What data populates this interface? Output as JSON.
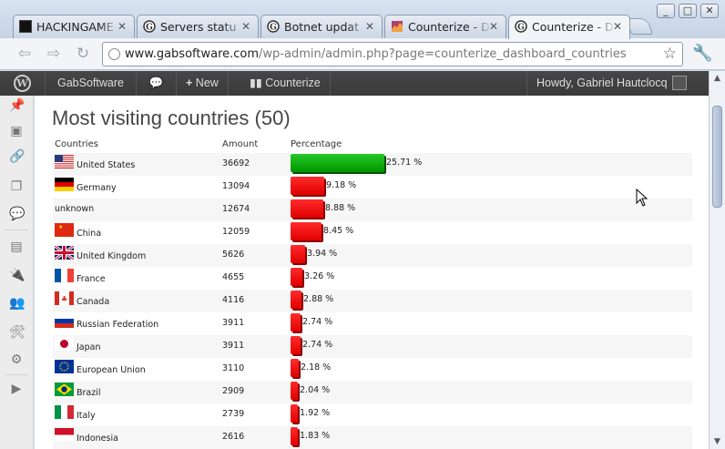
{
  "browser": {
    "tabs": [
      {
        "title": "HACKINGAME",
        "icon": "hackingame-favicon-icon",
        "active": false
      },
      {
        "title": "Servers statu",
        "icon": "gab-favicon-icon",
        "active": false
      },
      {
        "title": "Botnet updat",
        "icon": "gab-favicon-icon",
        "active": false
      },
      {
        "title": "Counterize - D",
        "icon": "counterize-favicon-icon",
        "active": false
      },
      {
        "title": "Counterize - D",
        "icon": "gab-favicon-icon",
        "active": true
      }
    ],
    "url_domain": "www.gabsoftware.com",
    "url_path": "/wp-admin/admin.php?page=counterize_dashboard_countries"
  },
  "adminbar": {
    "site_name": "GabSoftware",
    "new_label": "New",
    "plugin_label": "Counterize",
    "greeting": "Howdy, Gabriel Hautclocq"
  },
  "page": {
    "title": "Most visiting countries (50)"
  },
  "table": {
    "headers": {
      "country": "Countries",
      "amount": "Amount",
      "percentage": "Percentage"
    },
    "rows": [
      {
        "country": "United States",
        "flag": "us-flag-icon",
        "amount": "36692",
        "pct": "25.71 %",
        "value": 25.71,
        "color": "#00a000"
      },
      {
        "country": "Germany",
        "flag": "de-flag-icon",
        "amount": "13094",
        "pct": "9.18 %",
        "value": 9.18,
        "color": "#ee0000"
      },
      {
        "country": "unknown",
        "flag": "",
        "amount": "12674",
        "pct": "8.88 %",
        "value": 8.88,
        "color": "#ee0000"
      },
      {
        "country": "China",
        "flag": "cn-flag-icon",
        "amount": "12059",
        "pct": "8.45 %",
        "value": 8.45,
        "color": "#ee0000"
      },
      {
        "country": "United Kingdom",
        "flag": "gb-flag-icon",
        "amount": "5626",
        "pct": "3.94 %",
        "value": 3.94,
        "color": "#ee0000"
      },
      {
        "country": "France",
        "flag": "fr-flag-icon",
        "amount": "4655",
        "pct": "3.26 %",
        "value": 3.26,
        "color": "#ee0000"
      },
      {
        "country": "Canada",
        "flag": "ca-flag-icon",
        "amount": "4116",
        "pct": "2.88 %",
        "value": 2.88,
        "color": "#ee0000"
      },
      {
        "country": "Russian Federation",
        "flag": "ru-flag-icon",
        "amount": "3911",
        "pct": "2.74 %",
        "value": 2.74,
        "color": "#ee0000"
      },
      {
        "country": "Japan",
        "flag": "jp-flag-icon",
        "amount": "3911",
        "pct": "2.74 %",
        "value": 2.74,
        "color": "#ee0000"
      },
      {
        "country": "European Union",
        "flag": "eu-flag-icon",
        "amount": "3110",
        "pct": "2.18 %",
        "value": 2.18,
        "color": "#ee0000"
      },
      {
        "country": "Brazil",
        "flag": "br-flag-icon",
        "amount": "2909",
        "pct": "2.04 %",
        "value": 2.04,
        "color": "#ee0000"
      },
      {
        "country": "Italy",
        "flag": "it-flag-icon",
        "amount": "2739",
        "pct": "1.92 %",
        "value": 1.92,
        "color": "#ee0000"
      },
      {
        "country": "Indonesia",
        "flag": "id-flag-icon",
        "amount": "2616",
        "pct": "1.83 %",
        "value": 1.83,
        "color": "#ee0000"
      }
    ]
  }
}
